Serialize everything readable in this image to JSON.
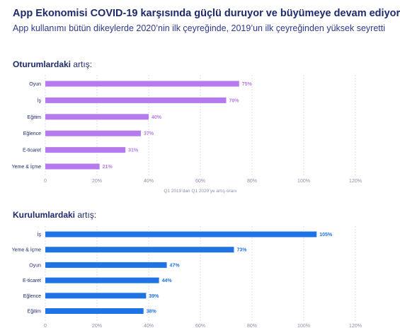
{
  "title": "App Ekonomisi COVID-19 karşısında güçlü duruyor ve büyümeye devam ediyor",
  "subtitle": "App kullanımı bütün dikeylerde 2020’nin ilk çeyreğinde, 2019’un ilk çeyreğinden yüksek seyretti",
  "colors": {
    "sessions": "#b57bee",
    "installs": "#1f73e5",
    "title": "#1d2a6b",
    "grid": "#d6d8e2"
  },
  "chart_data": [
    {
      "type": "bar",
      "orientation": "horizontal",
      "title_bold": "Oturumlardaki",
      "title_rest": " artış:",
      "categories": [
        "Oyun",
        "İş",
        "Eğitim",
        "Eğlence",
        "E-ticaret",
        "Yeme & İçme"
      ],
      "values": [
        75,
        70,
        40,
        37,
        31,
        21
      ],
      "value_labels": [
        "75%",
        "70%",
        "40%",
        "37%",
        "31%",
        "21%"
      ],
      "xlim": [
        0,
        120
      ],
      "xticks": [
        0,
        20,
        40,
        60,
        80,
        100,
        120
      ],
      "xtick_labels": [
        "0",
        "20%",
        "40%",
        "60%",
        "80%",
        "100%",
        "120%"
      ],
      "xlabel": "Q1 2019’dan Q1 2020’ye artış oranı",
      "grid": true,
      "color": "#b57bee"
    },
    {
      "type": "bar",
      "orientation": "horizontal",
      "title_bold": "Kurulumlardaki",
      "title_rest": " artış:",
      "categories": [
        "İş",
        "Yeme & İçme",
        "Oyun",
        "E-ticaret",
        "Eğlence",
        "Eğitim"
      ],
      "values": [
        105,
        73,
        47,
        44,
        39,
        38
      ],
      "value_labels": [
        "105%",
        "73%",
        "47%",
        "44%",
        "39%",
        "38%"
      ],
      "xlim": [
        0,
        120
      ],
      "xticks": [
        0,
        20,
        40,
        60,
        80,
        100,
        120
      ],
      "xtick_labels": [
        "0",
        "20%",
        "40%",
        "60%",
        "80%",
        "100%",
        "120%"
      ],
      "xlabel": "",
      "grid": true,
      "color": "#1f73e5"
    }
  ]
}
